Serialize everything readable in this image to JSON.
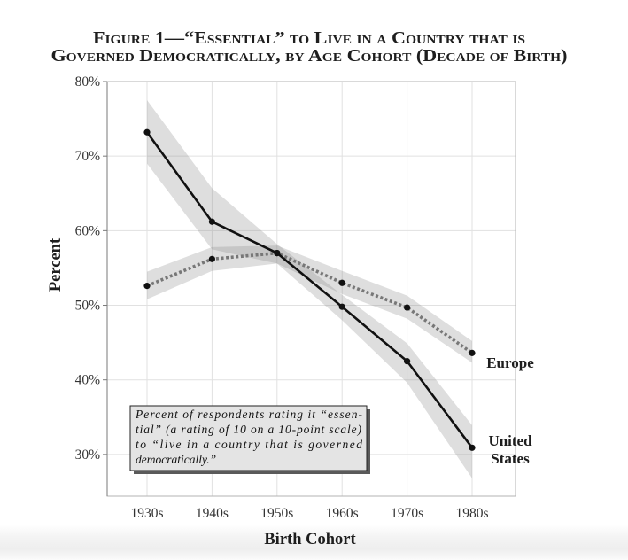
{
  "chart_data": {
    "type": "line",
    "title": [
      "Figure 1—“Essential” to Live in a Country that is",
      "Governed Democratically, by Age Cohort (Decade of Birth)"
    ],
    "xlabel": "Birth Cohort",
    "ylabel": "Percent",
    "categories": [
      "1930s",
      "1940s",
      "1950s",
      "1960s",
      "1970s",
      "1980s"
    ],
    "yticks": [
      80,
      70,
      60,
      50,
      40,
      30
    ],
    "ytick_labels": [
      "80%",
      "70%",
      "60%",
      "50%",
      "40%",
      "30%"
    ],
    "ylim": [
      24.4,
      80
    ],
    "grid": true,
    "series": [
      {
        "name": "United States",
        "line_style": "solid",
        "color": "#111111",
        "values": [
          73.2,
          61.2,
          57.0,
          49.8,
          42.5,
          30.9
        ],
        "band_upper": [
          77.5,
          65.7,
          58.2,
          51.4,
          44.9,
          33.9
        ],
        "band_lower": [
          69.0,
          57.5,
          55.6,
          48.0,
          39.6,
          26.8
        ]
      },
      {
        "name": "Europe",
        "line_style": "dotted",
        "color": "#777777",
        "values": [
          52.6,
          56.2,
          57.0,
          53.0,
          49.7,
          43.6
        ],
        "band_upper": [
          54.5,
          57.8,
          58.0,
          54.6,
          51.3,
          45.2
        ],
        "band_lower": [
          50.8,
          54.6,
          55.6,
          51.5,
          48.2,
          42.3
        ]
      }
    ],
    "band_color": "#8a8a8a",
    "marker_color": "#111111",
    "annotation_lines": [
      "Percent of respondents rating it “essen-",
      "tial” (a rating of 10 on a 10-point scale)",
      "to “live in a country that is governed",
      "democratically.”"
    ],
    "annotation_box_color": "#e4e4e4"
  }
}
